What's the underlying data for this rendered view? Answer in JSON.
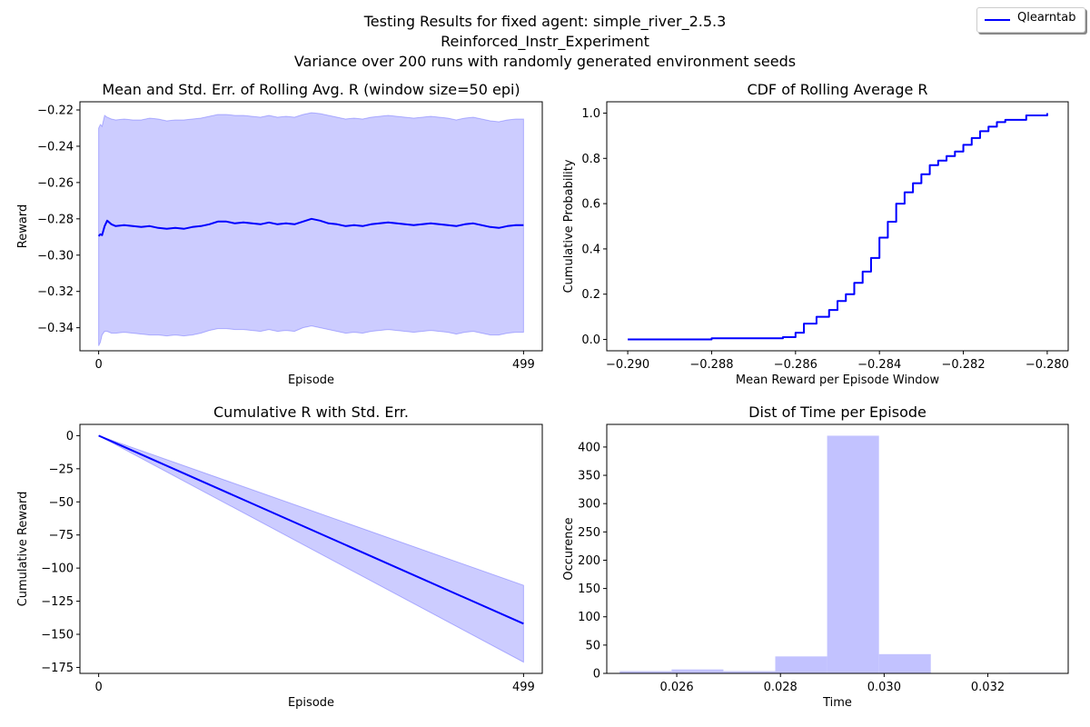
{
  "figure": {
    "title_lines": [
      "Testing Results for fixed agent: simple_river_2.5.3",
      "Reinforced_Instr_Experiment",
      "Variance over 200 runs with randomly generated environment seeds"
    ],
    "legend": {
      "label": "Qlearntab",
      "color": "#0000ff"
    }
  },
  "chart_data": [
    {
      "type": "line",
      "title": "Mean and Std. Err. of Rolling Avg. R (window size=50 epi)",
      "xlabel": "Episode",
      "ylabel": "Reward",
      "xlim": [
        -22,
        521
      ],
      "ylim": [
        -0.3527,
        -0.2155
      ],
      "xticks": [
        0,
        499
      ],
      "xticklabels": [
        "0",
        "499"
      ],
      "yticks": [
        -0.34,
        -0.32,
        -0.3,
        -0.28,
        -0.26,
        -0.24,
        -0.22
      ],
      "yticklabels": [
        "−0.34",
        "−0.32",
        "−0.30",
        "−0.28",
        "−0.26",
        "−0.24",
        "−0.22"
      ],
      "series": [
        {
          "color": "#0000ff",
          "x": [
            0,
            2,
            4,
            7,
            10,
            15,
            20,
            30,
            40,
            50,
            60,
            70,
            80,
            90,
            100,
            110,
            120,
            130,
            140,
            150,
            160,
            170,
            180,
            190,
            200,
            210,
            220,
            230,
            240,
            250,
            260,
            270,
            280,
            290,
            300,
            310,
            320,
            330,
            340,
            350,
            360,
            370,
            380,
            390,
            400,
            410,
            420,
            430,
            440,
            450,
            460,
            470,
            480,
            490,
            499
          ],
          "y": [
            -0.2895,
            -0.2885,
            -0.289,
            -0.284,
            -0.281,
            -0.283,
            -0.284,
            -0.2835,
            -0.284,
            -0.2845,
            -0.284,
            -0.285,
            -0.2855,
            -0.285,
            -0.2855,
            -0.2845,
            -0.284,
            -0.283,
            -0.2815,
            -0.2815,
            -0.2825,
            -0.282,
            -0.2825,
            -0.283,
            -0.282,
            -0.283,
            -0.2825,
            -0.283,
            -0.2815,
            -0.28,
            -0.281,
            -0.2825,
            -0.283,
            -0.284,
            -0.2835,
            -0.284,
            -0.283,
            -0.2825,
            -0.282,
            -0.2825,
            -0.283,
            -0.2835,
            -0.283,
            -0.2825,
            -0.283,
            -0.2835,
            -0.284,
            -0.283,
            -0.2825,
            -0.2835,
            -0.2845,
            -0.285,
            -0.284,
            -0.2835,
            -0.2835
          ],
          "lower": [
            -0.35,
            -0.348,
            -0.344,
            -0.342,
            -0.342,
            -0.343,
            -0.343,
            -0.3425,
            -0.343,
            -0.3435,
            -0.344,
            -0.344,
            -0.3445,
            -0.344,
            -0.3445,
            -0.344,
            -0.343,
            -0.3415,
            -0.3405,
            -0.3405,
            -0.341,
            -0.341,
            -0.3415,
            -0.342,
            -0.341,
            -0.342,
            -0.3415,
            -0.342,
            -0.34,
            -0.339,
            -0.34,
            -0.341,
            -0.342,
            -0.343,
            -0.3425,
            -0.343,
            -0.342,
            -0.3415,
            -0.341,
            -0.3415,
            -0.342,
            -0.3425,
            -0.342,
            -0.3415,
            -0.342,
            -0.3425,
            -0.3435,
            -0.3425,
            -0.342,
            -0.343,
            -0.344,
            -0.344,
            -0.343,
            -0.3425,
            -0.3425
          ],
          "upper": [
            -0.23,
            -0.228,
            -0.229,
            -0.223,
            -0.224,
            -0.225,
            -0.2255,
            -0.225,
            -0.2255,
            -0.2255,
            -0.2245,
            -0.225,
            -0.226,
            -0.2255,
            -0.2255,
            -0.225,
            -0.2245,
            -0.2235,
            -0.2225,
            -0.2225,
            -0.223,
            -0.223,
            -0.2235,
            -0.224,
            -0.223,
            -0.224,
            -0.2235,
            -0.224,
            -0.2225,
            -0.2215,
            -0.222,
            -0.223,
            -0.224,
            -0.225,
            -0.2245,
            -0.225,
            -0.224,
            -0.2235,
            -0.223,
            -0.2235,
            -0.224,
            -0.2245,
            -0.224,
            -0.2235,
            -0.224,
            -0.2245,
            -0.2255,
            -0.2245,
            -0.224,
            -0.225,
            -0.226,
            -0.2265,
            -0.2255,
            -0.225,
            -0.225
          ]
        }
      ]
    },
    {
      "type": "line",
      "title": "CDF of Rolling Average R",
      "xlabel": "Mean Reward per Episode Window",
      "ylabel": "Cumulative Probability",
      "xlim": [
        -0.2905,
        -0.2795
      ],
      "ylim": [
        -0.05,
        1.05
      ],
      "xticks": [
        -0.29,
        -0.288,
        -0.286,
        -0.284,
        -0.282,
        -0.28
      ],
      "xticklabels": [
        "−0.290",
        "−0.288",
        "−0.286",
        "−0.284",
        "−0.282",
        "−0.280"
      ],
      "yticks": [
        0.0,
        0.2,
        0.4,
        0.6,
        0.8,
        1.0
      ],
      "yticklabels": [
        "0.0",
        "0.2",
        "0.4",
        "0.6",
        "0.8",
        "1.0"
      ],
      "series": [
        {
          "color": "#0000ff",
          "x": [
            -0.29,
            -0.288,
            -0.2863,
            -0.286,
            -0.2858,
            -0.2855,
            -0.2852,
            -0.285,
            -0.2848,
            -0.2846,
            -0.2844,
            -0.2842,
            -0.284,
            -0.2838,
            -0.2836,
            -0.2834,
            -0.2832,
            -0.283,
            -0.2828,
            -0.2826,
            -0.2824,
            -0.2822,
            -0.282,
            -0.2818,
            -0.2816,
            -0.2814,
            -0.2812,
            -0.281,
            -0.2805,
            -0.28
          ],
          "y": [
            0.0,
            0.005,
            0.01,
            0.03,
            0.07,
            0.1,
            0.13,
            0.17,
            0.2,
            0.25,
            0.3,
            0.36,
            0.45,
            0.52,
            0.6,
            0.65,
            0.69,
            0.73,
            0.77,
            0.79,
            0.81,
            0.83,
            0.86,
            0.89,
            0.92,
            0.94,
            0.96,
            0.97,
            0.99,
            1.0
          ]
        }
      ]
    },
    {
      "type": "line",
      "title": "Cumulative R with Std. Err.",
      "xlabel": "Episode",
      "ylabel": "Cumulative Reward",
      "xlim": [
        -22,
        521
      ],
      "ylim": [
        -179.5,
        8.5
      ],
      "xticks": [
        0,
        499
      ],
      "xticklabels": [
        "0",
        "499"
      ],
      "yticks": [
        0,
        -25,
        -50,
        -75,
        -100,
        -125,
        -150,
        -175
      ],
      "yticklabels": [
        "0",
        "−25",
        "−50",
        "−75",
        "−100",
        "−125",
        "−150",
        "−175"
      ],
      "series": [
        {
          "color": "#0000ff",
          "x": [
            0,
            499
          ],
          "y": [
            0,
            -142
          ],
          "lower": [
            0,
            -171
          ],
          "upper": [
            0,
            -113
          ]
        }
      ]
    },
    {
      "type": "bar",
      "title": "Dist of Time per Episode",
      "xlabel": "Time",
      "ylabel": "Occurence",
      "xlim": [
        0.02465,
        0.03355
      ],
      "ylim": [
        0,
        440
      ],
      "xticks": [
        0.026,
        0.028,
        0.03,
        0.032
      ],
      "xticklabels": [
        "0.026",
        "0.028",
        "0.030",
        "0.032"
      ],
      "yticks": [
        0,
        50,
        100,
        150,
        200,
        250,
        300,
        350,
        400
      ],
      "yticklabels": [
        "0",
        "50",
        "100",
        "150",
        "200",
        "250",
        "300",
        "350",
        "400"
      ],
      "color": "#c2c2ff",
      "bin_edges": [
        0.0249,
        0.0259,
        0.0269,
        0.0279,
        0.0289,
        0.0299,
        0.0309,
        0.0319,
        0.0324,
        0.0334
      ],
      "values": [
        4,
        7,
        4,
        30,
        420,
        34,
        0,
        0,
        1
      ]
    }
  ]
}
